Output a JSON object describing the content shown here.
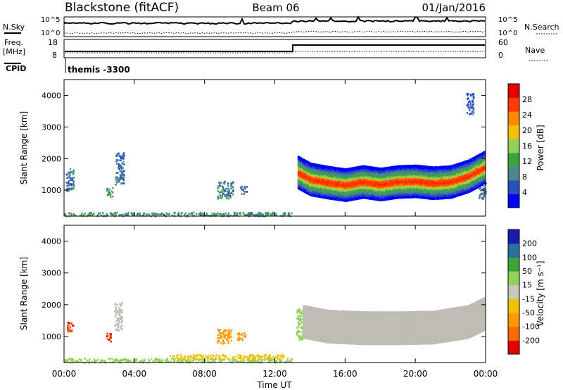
{
  "header": {
    "station": "Blackstone (fitACF)",
    "beam": "Beam 06",
    "date": "01/Jan/2016"
  },
  "top_panels": {
    "nsky_label": "N.Sky",
    "nsearch_label": "N.Search",
    "noise_ticks": [
      "10^5",
      "10^0"
    ],
    "freq_label": "Freq.",
    "freq_unit": "[MHz]",
    "freq_ticks": [
      "18",
      "8"
    ],
    "nave_label": "Nave",
    "nave_ticks": [
      "60",
      "0"
    ],
    "cpid_label": "CPID",
    "cpid_text": "themis -3300"
  },
  "colors": {
    "power_scale": [
      "#0000ff",
      "#2b4fbf",
      "#4a8a8a",
      "#3da33d",
      "#8fd15a",
      "#f2c200",
      "#ff8a00",
      "#ff3b00",
      "#e60000"
    ],
    "velocity_scale": [
      "#e60000",
      "#ff6a00",
      "#ff9a00",
      "#f2c200",
      "#c8c8c0",
      "#8fd15a",
      "#3da33d",
      "#2b6f9f",
      "#1a1aa8"
    ],
    "ground_scatter": "#bdbdb5"
  },
  "chart_data": [
    {
      "type": "heatmap",
      "panel": "power",
      "ylabel": "Slant Range [km]",
      "xlabel": "",
      "x_ticks": [
        "00:00",
        "04:00",
        "08:00",
        "12:00",
        "16:00",
        "20:00",
        "00:00"
      ],
      "y_ticks": [
        1000,
        2000,
        3000,
        4000
      ],
      "xlim_hours": [
        0,
        24
      ],
      "ylim_km": [
        180,
        4500
      ],
      "colorbar_label": "Power [dB]",
      "colorbar_ticks": [
        4,
        8,
        12,
        16,
        20,
        24,
        28
      ],
      "colorbar_range": [
        0,
        32
      ],
      "patches": [
        {
          "t0": 0.1,
          "t1": 0.55,
          "r0": 1000,
          "r1": 1700,
          "v": 8
        },
        {
          "t0": 2.4,
          "t1": 2.75,
          "r0": 800,
          "r1": 1100,
          "v": 10
        },
        {
          "t0": 2.9,
          "t1": 3.4,
          "r0": 1200,
          "r1": 2200,
          "v": 7
        },
        {
          "t0": 8.7,
          "t1": 9.6,
          "r0": 750,
          "r1": 1300,
          "v": 9
        },
        {
          "t0": 10.0,
          "t1": 10.4,
          "r0": 900,
          "r1": 1150,
          "v": 7
        },
        {
          "t0": 22.9,
          "t1": 23.3,
          "r0": 3400,
          "r1": 4100,
          "v": 6
        },
        {
          "t0": 23.6,
          "t1": 24.0,
          "r0": 750,
          "r1": 1300,
          "v": 8
        },
        {
          "t0": 0.0,
          "t1": 13.0,
          "r0": 200,
          "r1": 320,
          "v": 10
        }
      ],
      "band": {
        "t_start": 13.3,
        "t_end": 23.9,
        "center_km": [
          [
            13.3,
            1600
          ],
          [
            14.0,
            1380
          ],
          [
            15.0,
            1280
          ],
          [
            16.0,
            1200
          ],
          [
            17.0,
            1300
          ],
          [
            18.0,
            1220
          ],
          [
            19.0,
            1300
          ],
          [
            20.0,
            1320
          ],
          [
            21.0,
            1260
          ],
          [
            22.0,
            1300
          ],
          [
            23.0,
            1480
          ],
          [
            23.9,
            1750
          ]
        ],
        "core_halfwidth_km": 120,
        "halo_halfwidth_km": 500,
        "peak_db": 28
      }
    },
    {
      "type": "heatmap",
      "panel": "velocity",
      "ylabel": "Slant Range [km]",
      "xlabel": "Time UT",
      "x_ticks": [
        "00:00",
        "04:00",
        "08:00",
        "12:00",
        "16:00",
        "20:00",
        "00:00"
      ],
      "y_ticks": [
        1000,
        2000,
        3000,
        4000
      ],
      "xlim_hours": [
        0,
        24
      ],
      "ylim_km": [
        180,
        4500
      ],
      "colorbar_label": "Velocity [m s⁻¹]",
      "colorbar_ticks": [
        -200,
        -100,
        -50,
        -15,
        15,
        50,
        100,
        200
      ],
      "patches": [
        {
          "t0": 0.15,
          "t1": 0.5,
          "r0": 1150,
          "r1": 1500,
          "v": -200
        },
        {
          "t0": 2.4,
          "t1": 2.7,
          "r0": 850,
          "r1": 1150,
          "v": -200
        },
        {
          "t0": 2.85,
          "t1": 3.3,
          "r0": 1200,
          "r1": 2100,
          "v": 0
        },
        {
          "t0": 8.7,
          "t1": 9.5,
          "r0": 800,
          "r1": 1250,
          "v": -80
        },
        {
          "t0": 9.8,
          "t1": 10.3,
          "r0": 900,
          "r1": 1150,
          "v": -60
        },
        {
          "t0": 13.2,
          "t1": 13.6,
          "r0": 900,
          "r1": 1900,
          "v": 40
        },
        {
          "t0": 0.0,
          "t1": 13.0,
          "r0": 200,
          "r1": 330,
          "v": 40
        },
        {
          "t0": 6.0,
          "t1": 12.5,
          "r0": 300,
          "r1": 450,
          "v": -30
        }
      ],
      "band": {
        "t_start": 13.6,
        "t_end": 23.9,
        "center_km": [
          [
            13.6,
            1500
          ],
          [
            15.0,
            1350
          ],
          [
            17.0,
            1300
          ],
          [
            19.0,
            1300
          ],
          [
            21.0,
            1320
          ],
          [
            23.0,
            1500
          ],
          [
            23.9,
            1750
          ]
        ],
        "halfwidth_km": 500,
        "v": 0
      }
    }
  ]
}
